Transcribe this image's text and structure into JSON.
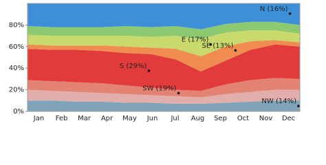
{
  "chart_data": {
    "type": "stacked-area",
    "categories": [
      "Jan",
      "Feb",
      "Mar",
      "Apr",
      "May",
      "Jun",
      "Jul",
      "Aug",
      "Sep",
      "Oct",
      "Nov",
      "Dec"
    ],
    "series": [
      {
        "name": "NW (14%)",
        "color": "#7fa3b9",
        "values": [
          10,
          10,
          9,
          9,
          8,
          8,
          7,
          7,
          8,
          9,
          10,
          10
        ]
      },
      {
        "color": "#e2aeab",
        "values": [
          10,
          9,
          9,
          8,
          8,
          7,
          7,
          6,
          8,
          9,
          10,
          10
        ]
      },
      {
        "name": "SW (19%)",
        "color": "#e38373",
        "values": [
          9,
          9,
          9,
          9,
          8,
          7,
          6,
          6,
          9,
          11,
          11,
          10
        ]
      },
      {
        "name": "S (29%)",
        "color": "#e23b3b",
        "values": [
          29,
          29,
          30,
          30,
          30,
          31,
          28,
          18,
          22,
          28,
          31,
          30
        ]
      },
      {
        "name": "SE (13%)",
        "color": "#ef8c50",
        "values": [
          4,
          4,
          4,
          5,
          6,
          6,
          10,
          14,
          13,
          8,
          4,
          4
        ]
      },
      {
        "name": "E (17%)",
        "color": "#c9d96b",
        "values": [
          9,
          9,
          9,
          9,
          10,
          10,
          12,
          16,
          13,
          10,
          9,
          8
        ]
      },
      {
        "color": "#8dc971",
        "values": [
          8,
          8,
          8,
          8,
          9,
          9,
          9,
          9,
          8,
          8,
          8,
          8
        ]
      },
      {
        "name": "N (16%)",
        "color": "#3d8fd8",
        "values": [
          21,
          22,
          22,
          22,
          21,
          22,
          21,
          24,
          19,
          17,
          17,
          20
        ]
      }
    ],
    "ylim": [
      0,
      100
    ],
    "yticks": [
      {
        "value": 0,
        "label": "0%"
      },
      {
        "value": 20,
        "label": "20%"
      },
      {
        "value": 40,
        "label": "40%"
      },
      {
        "value": 60,
        "label": "60%"
      },
      {
        "value": 80,
        "label": "80%"
      }
    ]
  }
}
